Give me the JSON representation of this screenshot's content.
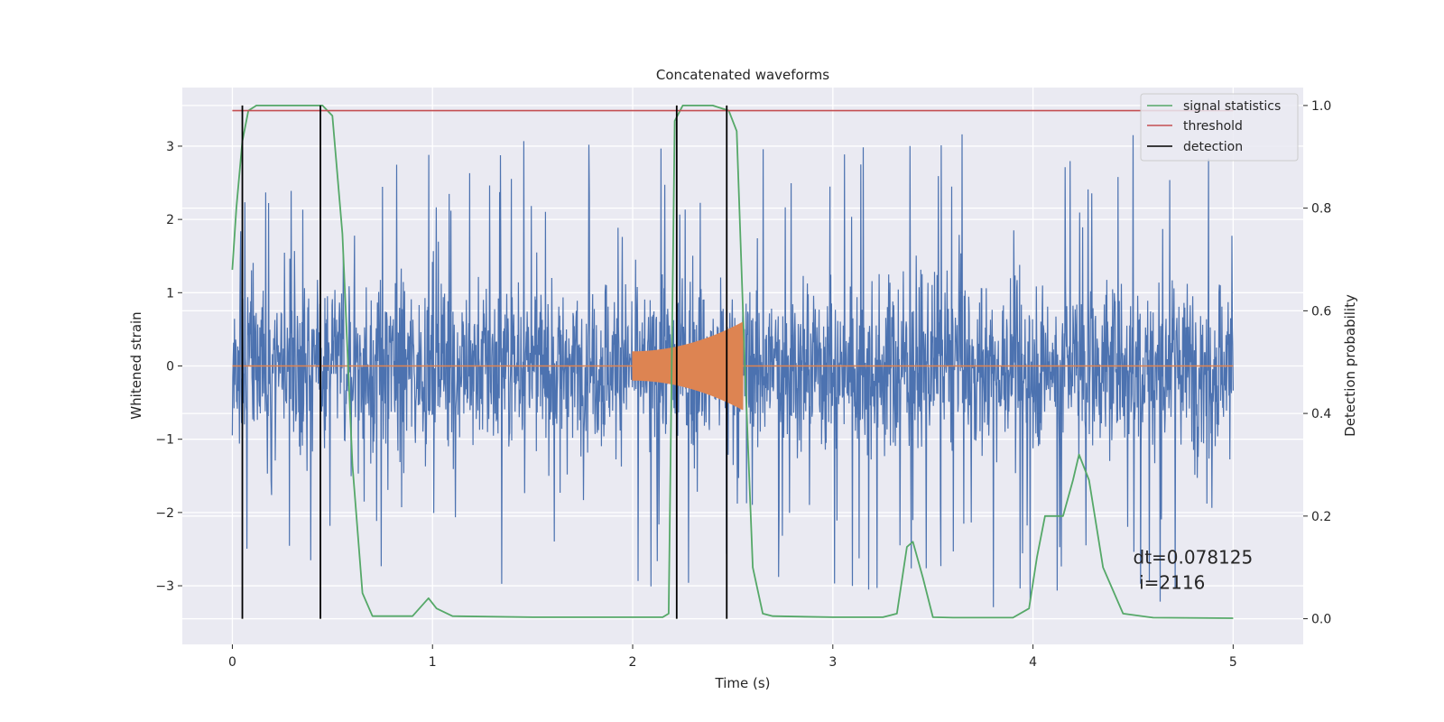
{
  "chart_data": {
    "type": "line",
    "title": "Concatenated waveforms",
    "xlabel": "Time (s)",
    "ylabel": "Whitened strain",
    "ylabel_right": "Detection probability",
    "xlim": [
      -0.25,
      5.35
    ],
    "ylim": [
      -3.8,
      3.8
    ],
    "ylim_right": [
      -0.05,
      1.035
    ],
    "xticks": [
      0,
      1,
      2,
      3,
      4,
      5
    ],
    "xtick_labels": [
      "0",
      "1",
      "2",
      "3",
      "4",
      "5"
    ],
    "yticks": [
      -3,
      -2,
      -1,
      0,
      1,
      2,
      3
    ],
    "ytick_labels": [
      "−3",
      "−2",
      "−1",
      "0",
      "1",
      "2",
      "3"
    ],
    "yticks_right": [
      0.0,
      0.2,
      0.4,
      0.6,
      0.8,
      1.0
    ],
    "ytick_right_labels": [
      "0.0",
      "0.2",
      "0.4",
      "0.6",
      "0.8",
      "1.0"
    ],
    "grid": true,
    "legend_position": "top-right",
    "series": [
      {
        "name": "",
        "kind": "noise_strain",
        "axis": "left",
        "color": "#4c72b0",
        "x_range": [
          0,
          5
        ],
        "envelope": {
          "x": [
            0,
            1,
            2,
            3,
            4,
            5
          ],
          "max": [
            2.4,
            3.0,
            3.2,
            3.0,
            3.4,
            3.0
          ],
          "min": [
            -2.5,
            -3.2,
            -3.0,
            -3.2,
            -3.4,
            -3.2
          ]
        }
      },
      {
        "name": "",
        "kind": "injected_signal",
        "axis": "left",
        "color": "#dd8452",
        "x_range": [
          2.0,
          2.55
        ],
        "amplitude_start": 0.2,
        "amplitude_end": 0.6
      },
      {
        "name": "signal statistics",
        "axis": "right",
        "color": "#55a868",
        "x": [
          0,
          0.02,
          0.05,
          0.08,
          0.12,
          0.2,
          0.4,
          0.45,
          0.5,
          0.55,
          0.6,
          0.65,
          0.7,
          0.9,
          0.98,
          1.02,
          1.1,
          1.5,
          2.0,
          2.15,
          2.18,
          2.21,
          2.25,
          2.4,
          2.48,
          2.52,
          2.56,
          2.6,
          2.65,
          2.7,
          3.0,
          3.25,
          3.32,
          3.37,
          3.4,
          3.45,
          3.5,
          3.6,
          3.9,
          3.98,
          4.02,
          4.06,
          4.1,
          4.15,
          4.2,
          4.23,
          4.28,
          4.35,
          4.45,
          4.6,
          5.0
        ],
        "y": [
          0.68,
          0.8,
          0.93,
          0.99,
          1.0,
          1.0,
          1.0,
          1.0,
          0.98,
          0.75,
          0.3,
          0.05,
          0.005,
          0.005,
          0.04,
          0.02,
          0.005,
          0.003,
          0.003,
          0.003,
          0.01,
          0.97,
          1.0,
          1.0,
          0.99,
          0.95,
          0.5,
          0.1,
          0.01,
          0.005,
          0.003,
          0.003,
          0.01,
          0.14,
          0.15,
          0.08,
          0.003,
          0.002,
          0.002,
          0.02,
          0.12,
          0.2,
          0.2,
          0.2,
          0.27,
          0.32,
          0.27,
          0.1,
          0.01,
          0.002,
          0.001
        ]
      },
      {
        "name": "threshold",
        "axis": "right",
        "color": "#c44e52",
        "x": [
          0,
          5
        ],
        "y": [
          0.99,
          0.99
        ]
      },
      {
        "name": "detection",
        "axis": "right",
        "color": "#000000",
        "type": "vlines",
        "x": [
          0.05,
          0.44,
          2.22,
          2.47
        ],
        "ymin": 0.0,
        "ymax": 1.0
      }
    ],
    "annotations": [
      {
        "text": "dt=0.078125",
        "x": 4.5,
        "y": -2.7
      },
      {
        "text": "i=2116",
        "x": 4.53,
        "y": -3.04
      }
    ]
  }
}
